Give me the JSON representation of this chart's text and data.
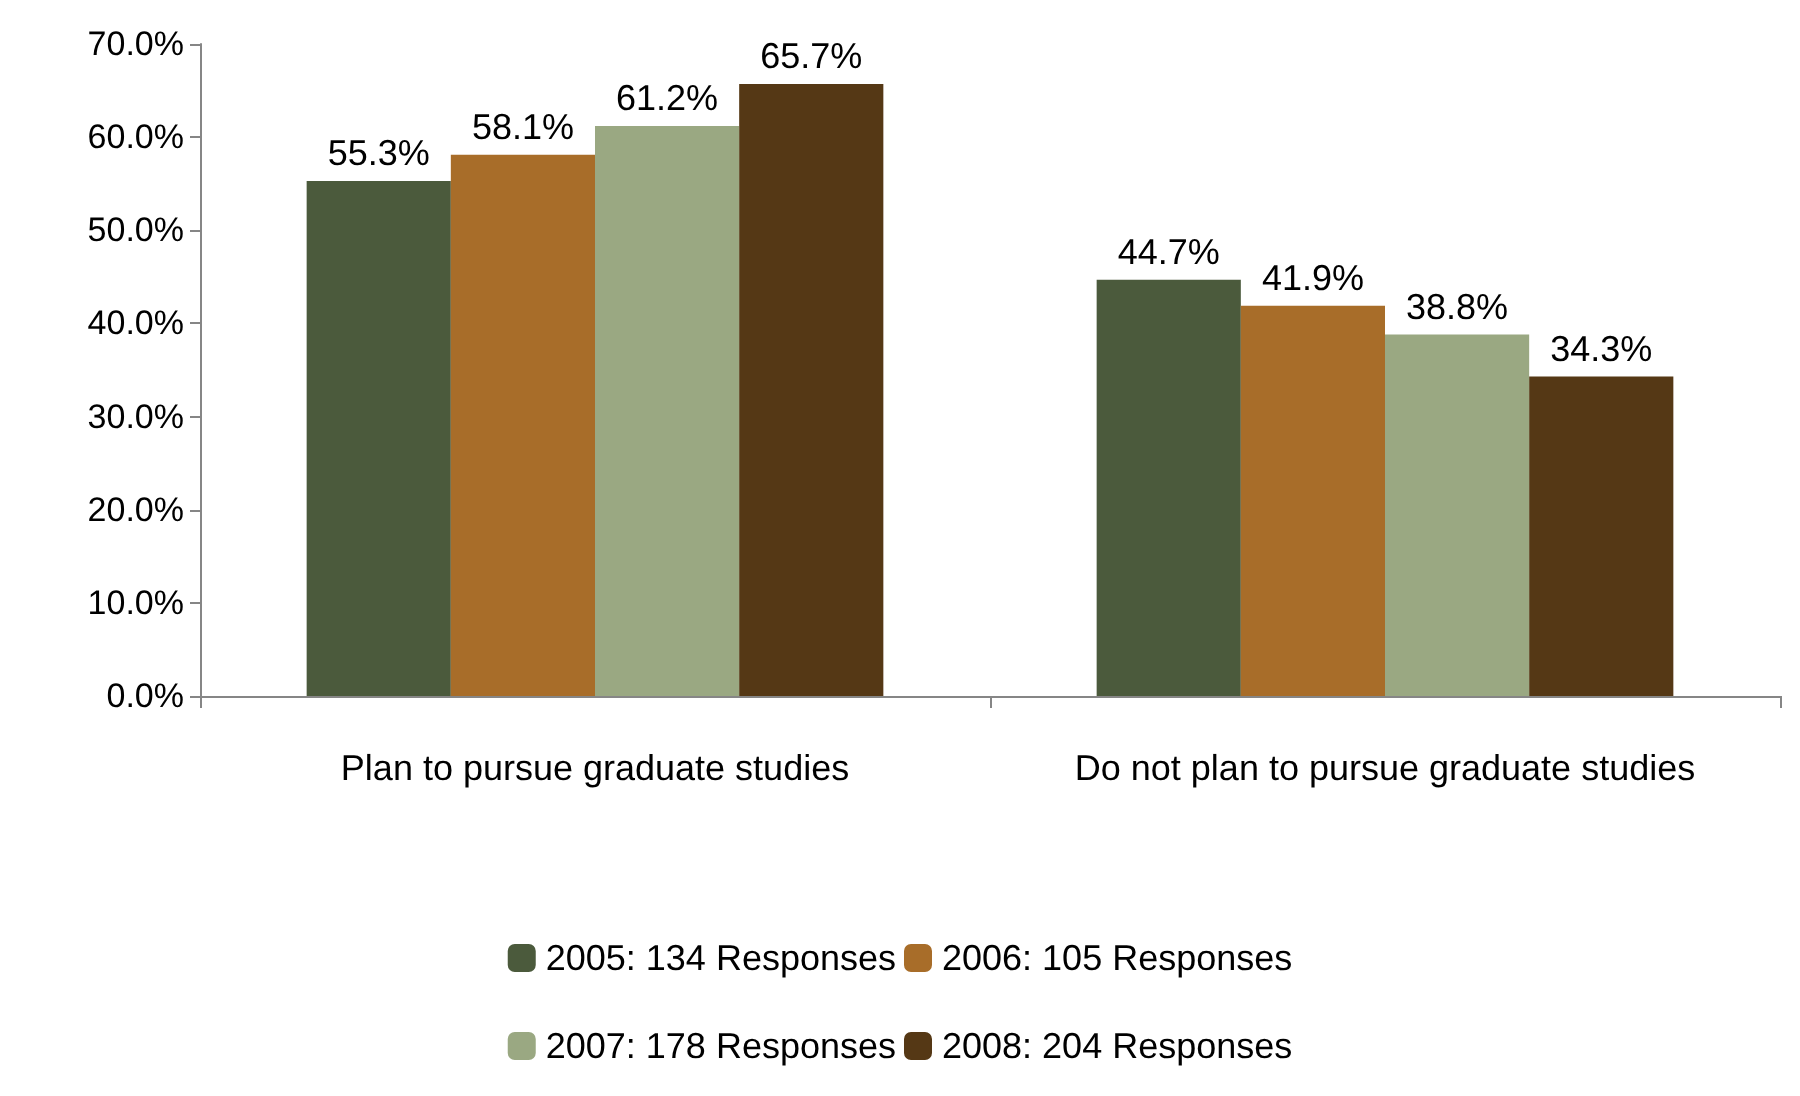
{
  "chart_data": {
    "type": "bar",
    "categories": [
      "Plan to pursue graduate studies",
      "Do not plan to pursue graduate studies"
    ],
    "series": [
      {
        "name": "2005: 134 Responses",
        "color": "#4b5a3c",
        "values": [
          55.3,
          44.7
        ],
        "value_labels": [
          "55.3%",
          "44.7%"
        ]
      },
      {
        "name": "2006: 105 Responses",
        "color": "#a86d29",
        "values": [
          58.1,
          41.9
        ],
        "value_labels": [
          "58.1%",
          "41.9%"
        ]
      },
      {
        "name": "2007: 178 Responses",
        "color": "#9aa882",
        "values": [
          61.2,
          38.8
        ],
        "value_labels": [
          "61.2%",
          "38.8%"
        ]
      },
      {
        "name": "2008: 204 Responses",
        "color": "#553815",
        "values": [
          65.7,
          34.3
        ],
        "value_labels": [
          "65.7%",
          "34.3%"
        ]
      }
    ],
    "ylim": [
      0,
      70
    ],
    "yticks": [
      {
        "value": 0,
        "label": "0.0%"
      },
      {
        "value": 10,
        "label": "10.0%"
      },
      {
        "value": 20,
        "label": "20.0%"
      },
      {
        "value": 30,
        "label": "30.0%"
      },
      {
        "value": 40,
        "label": "40.0%"
      },
      {
        "value": 50,
        "label": "50.0%"
      },
      {
        "value": 60,
        "label": "60.0%"
      },
      {
        "value": 70,
        "label": "70.0%"
      }
    ],
    "grid": false,
    "legend": "bottom"
  }
}
